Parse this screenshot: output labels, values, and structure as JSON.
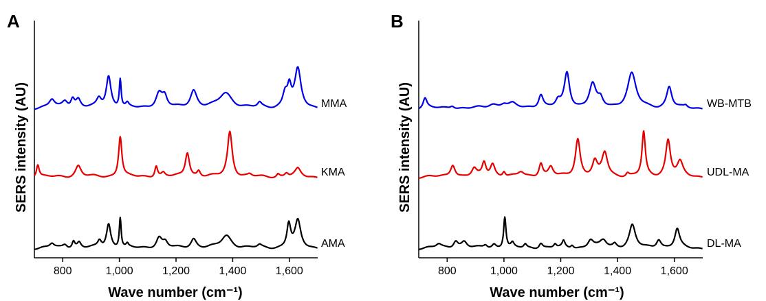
{
  "chart_data": [
    {
      "type": "line",
      "panel_label": "A",
      "xlabel": "Wave number (cm⁻¹)",
      "ylabel": "SERS intensity (AU)",
      "xlim": [
        700,
        1700
      ],
      "xticks": [
        800,
        1000,
        1200,
        1400,
        1600
      ],
      "xtick_labels": [
        "800",
        "1,000",
        "1,200",
        "1,400",
        "1,600"
      ],
      "y_ticks_shown": false,
      "series": [
        {
          "name": "MMA",
          "color": "#0000e6",
          "offset": 2.0,
          "peaks": [
            [
              762,
              0.13,
              12
            ],
            [
              808,
              0.11,
              12
            ],
            [
              835,
              0.14,
              8
            ],
            [
              855,
              0.13,
              10
            ],
            [
              928,
              0.14,
              10
            ],
            [
              962,
              0.5,
              10
            ],
            [
              1003,
              0.45,
              4
            ],
            [
              1028,
              0.06,
              6
            ],
            [
              1140,
              0.24,
              14
            ],
            [
              1160,
              0.16,
              10
            ],
            [
              1262,
              0.28,
              14
            ],
            [
              1375,
              0.24,
              28
            ],
            [
              1495,
              0.07,
              8
            ],
            [
              1585,
              0.22,
              10
            ],
            [
              1600,
              0.3,
              8
            ],
            [
              1630,
              0.6,
              13
            ]
          ]
        },
        {
          "name": "KMA",
          "color": "#e60000",
          "offset": 1.0,
          "peaks": [
            [
              712,
              0.2,
              6
            ],
            [
              855,
              0.18,
              12
            ],
            [
              1003,
              0.65,
              7
            ],
            [
              1130,
              0.18,
              6
            ],
            [
              1155,
              0.06,
              8
            ],
            [
              1240,
              0.39,
              9
            ],
            [
              1280,
              0.09,
              7
            ],
            [
              1390,
              0.72,
              10
            ],
            [
              1460,
              0.03,
              8
            ],
            [
              1560,
              0.05,
              6
            ],
            [
              1590,
              0.06,
              8
            ],
            [
              1630,
              0.12,
              12
            ]
          ]
        },
        {
          "name": "AMA",
          "color": "#000000",
          "offset": 0.0,
          "peaks": [
            [
              762,
              0.07,
              10
            ],
            [
              808,
              0.06,
              10
            ],
            [
              838,
              0.11,
              6
            ],
            [
              858,
              0.09,
              8
            ],
            [
              930,
              0.11,
              8
            ],
            [
              962,
              0.38,
              9
            ],
            [
              1003,
              0.48,
              4
            ],
            [
              1028,
              0.05,
              5
            ],
            [
              1140,
              0.17,
              12
            ],
            [
              1162,
              0.09,
              10
            ],
            [
              1262,
              0.15,
              12
            ],
            [
              1378,
              0.2,
              22
            ],
            [
              1495,
              0.04,
              8
            ],
            [
              1598,
              0.38,
              8
            ],
            [
              1630,
              0.42,
              12
            ]
          ]
        }
      ]
    },
    {
      "type": "line",
      "panel_label": "B",
      "xlabel": "Wave number (cm⁻¹)",
      "ylabel": "SERS intensity (AU)",
      "xlim": [
        700,
        1700
      ],
      "xticks": [
        800,
        1000,
        1200,
        1400,
        1600
      ],
      "xtick_labels": [
        "800",
        "1,000",
        "1,200",
        "1,400",
        "1,600"
      ],
      "y_ticks_shown": false,
      "series": [
        {
          "name": "WB-MTB",
          "color": "#0000e6",
          "offset": 2.0,
          "peaks": [
            [
              722,
              0.16,
              8
            ],
            [
              818,
              0.05,
              10
            ],
            [
              960,
              0.06,
              20
            ],
            [
              1000,
              0.07,
              15
            ],
            [
              1030,
              0.06,
              15
            ],
            [
              1130,
              0.22,
              10
            ],
            [
              1190,
              0.1,
              10
            ],
            [
              1222,
              0.55,
              11
            ],
            [
              1312,
              0.38,
              14
            ],
            [
              1340,
              0.12,
              10
            ],
            [
              1450,
              0.55,
              18
            ],
            [
              1582,
              0.34,
              11
            ],
            [
              1640,
              0.03,
              6
            ]
          ]
        },
        {
          "name": "UDL-MA",
          "color": "#e60000",
          "offset": 1.0,
          "peaks": [
            [
              820,
              0.2,
              10
            ],
            [
              895,
              0.12,
              10
            ],
            [
              930,
              0.22,
              8
            ],
            [
              960,
              0.2,
              10
            ],
            [
              1000,
              0.08,
              6
            ],
            [
              1060,
              0.07,
              12
            ],
            [
              1130,
              0.22,
              8
            ],
            [
              1165,
              0.15,
              10
            ],
            [
              1260,
              0.6,
              10
            ],
            [
              1320,
              0.22,
              10
            ],
            [
              1355,
              0.38,
              12
            ],
            [
              1435,
              0.05,
              6
            ],
            [
              1492,
              0.7,
              7
            ],
            [
              1578,
              0.58,
              10
            ],
            [
              1620,
              0.22,
              12
            ]
          ]
        },
        {
          "name": "DL-MA",
          "color": "#000000",
          "offset": 0.0,
          "peaks": [
            [
              770,
              0.06,
              12
            ],
            [
              830,
              0.12,
              10
            ],
            [
              860,
              0.1,
              12
            ],
            [
              935,
              0.05,
              8
            ],
            [
              965,
              0.06,
              8
            ],
            [
              1003,
              0.5,
              5
            ],
            [
              1030,
              0.07,
              6
            ],
            [
              1075,
              0.06,
              6
            ],
            [
              1130,
              0.09,
              8
            ],
            [
              1180,
              0.06,
              6
            ],
            [
              1210,
              0.1,
              6
            ],
            [
              1240,
              0.05,
              6
            ],
            [
              1305,
              0.13,
              12
            ],
            [
              1350,
              0.12,
              14
            ],
            [
              1390,
              0.06,
              8
            ],
            [
              1452,
              0.36,
              13
            ],
            [
              1545,
              0.14,
              10
            ],
            [
              1610,
              0.3,
              10
            ]
          ]
        }
      ]
    }
  ]
}
